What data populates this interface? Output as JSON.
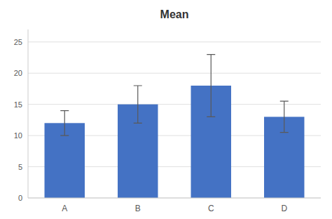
{
  "chart_data": {
    "type": "bar",
    "title": "Mean",
    "categories": [
      "A",
      "B",
      "C",
      "D"
    ],
    "values": [
      12,
      15,
      18,
      13
    ],
    "errors": [
      2.0,
      3.0,
      5.0,
      2.5
    ],
    "color": "#4472C4",
    "ylim": [
      0,
      27
    ],
    "yticks": [
      0,
      5,
      10,
      15,
      20,
      25
    ],
    "grid": true
  }
}
